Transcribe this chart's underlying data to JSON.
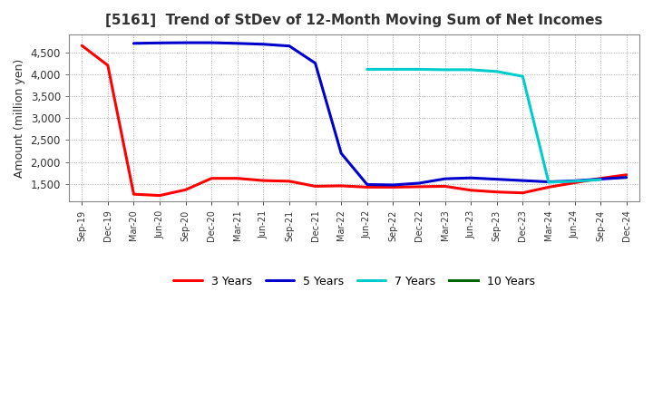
{
  "title": "[5161]  Trend of StDev of 12-Month Moving Sum of Net Incomes",
  "ylabel": "Amount (million yen)",
  "background_color": "#ffffff",
  "plot_bg_color": "#ffffff",
  "grid_color": "#aaaaaa",
  "x_labels": [
    "Sep-19",
    "Dec-19",
    "Mar-20",
    "Jun-20",
    "Sep-20",
    "Dec-20",
    "Mar-21",
    "Jun-21",
    "Sep-21",
    "Dec-21",
    "Mar-22",
    "Jun-22",
    "Sep-22",
    "Dec-22",
    "Mar-23",
    "Jun-23",
    "Sep-23",
    "Dec-23",
    "Mar-24",
    "Jun-24",
    "Sep-24",
    "Dec-24"
  ],
  "ylim": [
    1100,
    4900
  ],
  "yticks": [
    1500,
    2000,
    2500,
    3000,
    3500,
    4000,
    4500
  ],
  "series": {
    "3 Years": {
      "color": "#ff0000",
      "data": [
        4650,
        4200,
        1270,
        1240,
        1370,
        1630,
        1630,
        1580,
        1565,
        1450,
        1460,
        1430,
        1430,
        1440,
        1450,
        1360,
        1320,
        1300,
        1430,
        1530,
        1630,
        1710
      ]
    },
    "5 Years": {
      "color": "#0000cc",
      "data": [
        null,
        null,
        4700,
        4710,
        4715,
        4715,
        4700,
        4680,
        4640,
        4250,
        2200,
        1490,
        1480,
        1520,
        1620,
        1640,
        1610,
        1580,
        1550,
        1575,
        1615,
        1650
      ]
    },
    "7 Years": {
      "color": "#00cccc",
      "data": [
        null,
        null,
        null,
        null,
        null,
        null,
        null,
        null,
        null,
        null,
        null,
        4110,
        4110,
        4110,
        4100,
        4100,
        4060,
        3950,
        1540,
        1565,
        1600,
        null
      ]
    },
    "10 Years": {
      "color": "#006600",
      "data": [
        null,
        null,
        null,
        null,
        null,
        null,
        null,
        null,
        null,
        null,
        null,
        null,
        null,
        null,
        null,
        null,
        null,
        null,
        null,
        null,
        null,
        null
      ]
    }
  },
  "legend": [
    "3 Years",
    "5 Years",
    "7 Years",
    "10 Years"
  ]
}
